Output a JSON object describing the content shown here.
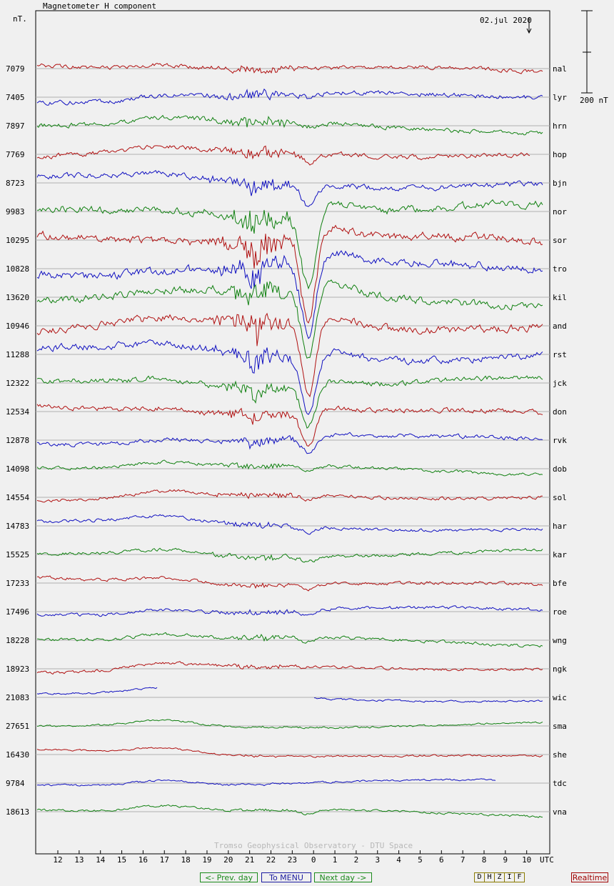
{
  "header": {
    "title": "Magnetometer H component",
    "unit": "nT.",
    "date": "02.jul 2020",
    "scale_label": "200 nT"
  },
  "footer": {
    "credit": "Tromso Geophysical Observatory - DTU Space",
    "prev_day": "<- Prev. day",
    "to_menu": "To MENU",
    "next_day": "Next day ->",
    "components": [
      "D",
      "H",
      "Z",
      "I",
      "F"
    ],
    "realtime": "Realtime"
  },
  "colors": {
    "red": "#b01010",
    "blue": "#1010c0",
    "green": "#108010",
    "grid": "#b0b0b0",
    "axis": "#000000"
  },
  "chart_data": {
    "type": "line",
    "title": "Magnetometer H component",
    "xlabel": "UTC",
    "ylabel": "nT.",
    "x_ticks": [
      "12",
      "13",
      "14",
      "15",
      "16",
      "17",
      "18",
      "19",
      "20",
      "21",
      "22",
      "23",
      "0",
      "1",
      "2",
      "3",
      "4",
      "5",
      "6",
      "7",
      "8",
      "9",
      "10"
    ],
    "series": [
      {
        "name": "nal",
        "baseline": "7079",
        "color": "red",
        "activity": 0.35,
        "dip": 0.0
      },
      {
        "name": "lyr",
        "baseline": "7405",
        "color": "blue",
        "activity": 0.45,
        "dip": 0.05
      },
      {
        "name": "hrn",
        "baseline": "7897",
        "color": "green",
        "activity": 0.45,
        "dip": 0.05
      },
      {
        "name": "hop",
        "baseline": "7769",
        "color": "red",
        "activity": 0.5,
        "dip": 0.1
      },
      {
        "name": "bjn",
        "baseline": "8723",
        "color": "blue",
        "activity": 0.6,
        "dip": 0.25
      },
      {
        "name": "nor",
        "baseline": "9983",
        "color": "green",
        "activity": 0.9,
        "dip": 0.9
      },
      {
        "name": "sor",
        "baseline": "10295",
        "color": "red",
        "activity": 1.0,
        "dip": 1.0
      },
      {
        "name": "tro",
        "baseline": "10828",
        "color": "blue",
        "activity": 1.0,
        "dip": 0.9
      },
      {
        "name": "kil",
        "baseline": "13620",
        "color": "green",
        "activity": 0.9,
        "dip": 0.8
      },
      {
        "name": "and",
        "baseline": "10946",
        "color": "red",
        "activity": 0.9,
        "dip": 0.85
      },
      {
        "name": "rst",
        "baseline": "11288",
        "color": "blue",
        "activity": 0.8,
        "dip": 0.7
      },
      {
        "name": "jck",
        "baseline": "12322",
        "color": "green",
        "activity": 0.6,
        "dip": 0.5
      },
      {
        "name": "don",
        "baseline": "12534",
        "color": "red",
        "activity": 0.5,
        "dip": 0.4
      },
      {
        "name": "rvk",
        "baseline": "12878",
        "color": "blue",
        "activity": 0.4,
        "dip": 0.2
      },
      {
        "name": "dob",
        "baseline": "14098",
        "color": "green",
        "activity": 0.25,
        "dip": 0.05
      },
      {
        "name": "sol",
        "baseline": "14554",
        "color": "red",
        "activity": 0.25,
        "dip": 0.05
      },
      {
        "name": "har",
        "baseline": "14783",
        "color": "blue",
        "activity": 0.25,
        "dip": 0.05
      },
      {
        "name": "kar",
        "baseline": "15525",
        "color": "green",
        "activity": 0.25,
        "dip": 0.05
      },
      {
        "name": "bfe",
        "baseline": "17233",
        "color": "red",
        "activity": 0.25,
        "dip": 0.05
      },
      {
        "name": "roe",
        "baseline": "17496",
        "color": "blue",
        "activity": 0.25,
        "dip": 0.05
      },
      {
        "name": "wng",
        "baseline": "18228",
        "color": "green",
        "activity": 0.25,
        "dip": 0.05
      },
      {
        "name": "ngk",
        "baseline": "18923",
        "color": "red",
        "activity": 0.2,
        "dip": 0.0
      },
      {
        "name": "wic",
        "baseline": "21083",
        "color": "blue",
        "activity": 0.05,
        "dip": 0.0
      },
      {
        "name": "sma",
        "baseline": "27651",
        "color": "green",
        "activity": 0.05,
        "dip": 0.0
      },
      {
        "name": "she",
        "baseline": "16430",
        "color": "red",
        "activity": 0.05,
        "dip": 0.0
      },
      {
        "name": "tdc",
        "baseline": "9784",
        "color": "blue",
        "activity": 0.05,
        "dip": 0.0
      },
      {
        "name": "vna",
        "baseline": "18613",
        "color": "green",
        "activity": 0.1,
        "dip": 0.05
      }
    ]
  }
}
